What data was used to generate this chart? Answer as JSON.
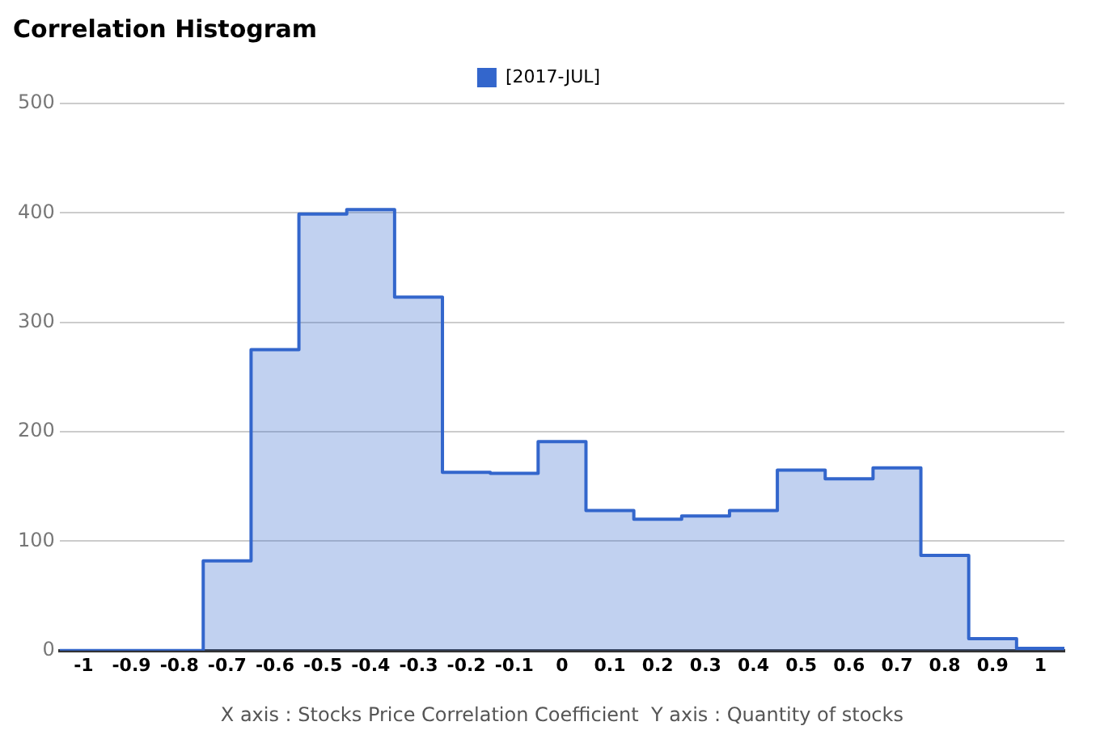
{
  "chart_data": {
    "type": "histogram",
    "title": "Correlation Histogram",
    "xlabel": "X axis : Stocks Price Correlation Coefficient  Y axis : Quantity of stocks",
    "bins": [
      -1.05,
      -0.95,
      -0.85,
      -0.75,
      -0.65,
      -0.55,
      -0.45,
      -0.35,
      -0.25,
      -0.15,
      -0.05,
      0.05,
      0.15,
      0.25,
      0.35,
      0.45,
      0.55,
      0.65,
      0.75,
      0.85,
      0.95,
      1.05
    ],
    "series": [
      {
        "name": "[2017-JUL]",
        "color": "#3366cc",
        "values": [
          0,
          0,
          0,
          82,
          275,
          399,
          403,
          323,
          163,
          162,
          191,
          128,
          120,
          123,
          128,
          165,
          157,
          167,
          87,
          11,
          2
        ]
      }
    ],
    "xlim": [
      -1.05,
      1.05
    ],
    "xticks": [
      -1,
      -0.9,
      -0.8,
      -0.7,
      -0.6,
      -0.5,
      -0.4,
      -0.3,
      -0.2,
      -0.1,
      0,
      0.1,
      0.2,
      0.3,
      0.4,
      0.5,
      0.6,
      0.7,
      0.8,
      0.9,
      1
    ],
    "ylim": [
      0,
      500
    ],
    "yticks": [
      0,
      100,
      200,
      300,
      400,
      500
    ],
    "grid": "y",
    "legend": "top"
  }
}
